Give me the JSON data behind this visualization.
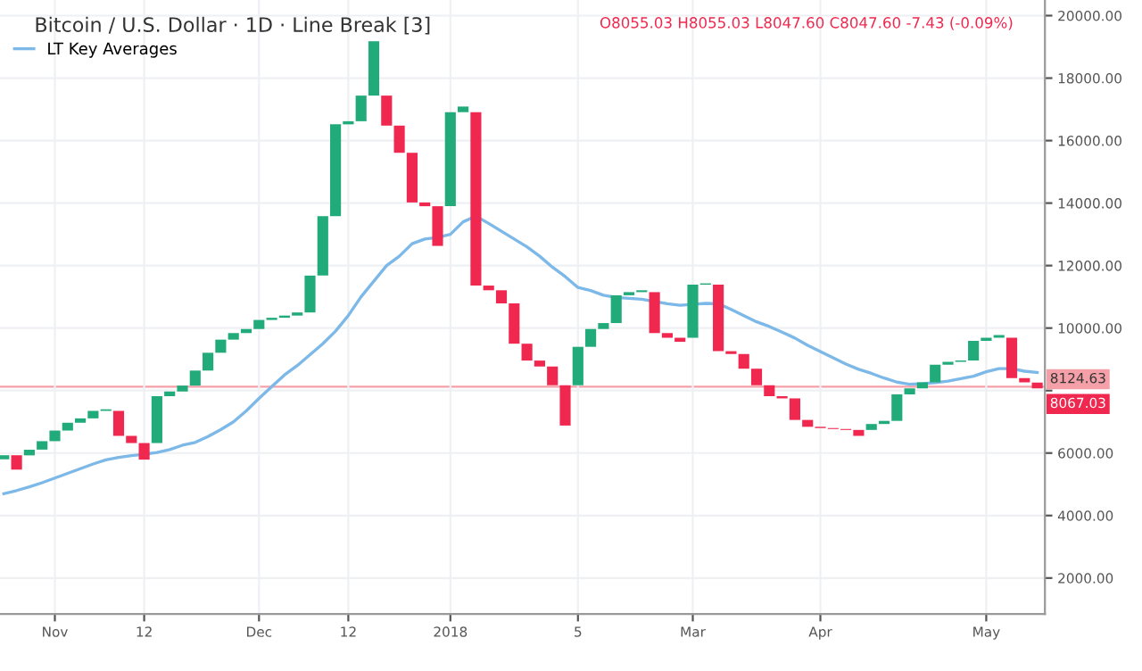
{
  "chart_data": {
    "type": "bar",
    "title": "Bitcoin / U.S. Dollar · 1D · Line Break [3]",
    "annotations": [
      "O8055.03 H8055.03 L8047.60 C8047.60 -7.43 (-0.09%)",
      "8067.03"
    ],
    "categories": [
      null,
      null,
      null,
      null,
      "Nov",
      null,
      null,
      null,
      null,
      null,
      null,
      "12",
      null,
      null,
      null,
      null,
      null,
      null,
      null,
      null,
      "Dec",
      null,
      null,
      null,
      null,
      null,
      null,
      "12",
      null,
      null,
      null,
      null,
      null,
      null,
      null,
      "2018",
      null,
      null,
      null,
      null,
      null,
      null,
      null,
      null,
      null,
      "5",
      null,
      null,
      null,
      null,
      null,
      null,
      null,
      null,
      "Mar",
      null,
      null,
      null,
      null,
      null,
      null,
      null,
      null,
      null,
      "Apr",
      null,
      null,
      null,
      null,
      null,
      null,
      null,
      null,
      null,
      null,
      null,
      null,
      "May",
      null,
      null,
      null,
      null
    ],
    "series": [
      {
        "type": "bar",
        "base": [
          5800,
          5470,
          5926,
          6110,
          6380,
          6720,
          6970,
          7110,
          7350,
          6550,
          6320,
          5790,
          6320,
          7820,
          7970,
          8160,
          8640,
          9210,
          9630,
          9840,
          9970,
          10260,
          10330,
          10400,
          10500,
          11680,
          13580,
          16520,
          16620,
          17440,
          16480,
          15610,
          14020,
          13900,
          12630,
          13900,
          16910,
          11360,
          11210,
          10790,
          9500,
          8960,
          8770,
          8170,
          6880,
          8170,
          9400,
          9970,
          10160,
          11050,
          11150,
          9840,
          9690,
          9560,
          9690,
          11390,
          9260,
          9170,
          8700,
          8170,
          7820,
          7750,
          7060,
          6840,
          6800,
          6770,
          6740,
          6550,
          6740,
          6930,
          7030,
          7880,
          8070,
          8260,
          8830,
          8920,
          8960,
          9590,
          9690,
          8400,
          8260,
          8067
        ],
        "values": [
          130,
          460,
          180,
          270,
          340,
          250,
          140,
          240,
          50,
          800,
          230,
          530,
          1500,
          150,
          190,
          480,
          570,
          420,
          210,
          130,
          290,
          70,
          70,
          100,
          1180,
          1900,
          2940,
          100,
          820,
          1740,
          960,
          870,
          1590,
          120,
          1270,
          3010,
          180,
          5550,
          150,
          420,
          1290,
          540,
          190,
          600,
          1290,
          1230,
          570,
          190,
          890,
          100,
          60,
          1310,
          150,
          130,
          1700,
          40,
          2130,
          90,
          470,
          530,
          350,
          70,
          690,
          220,
          40,
          30,
          30,
          190,
          190,
          100,
          850,
          190,
          190,
          570,
          90,
          40,
          630,
          100,
          90,
          1290,
          140,
          190
        ],
        "colors": [
          "#22ab7a",
          "#f0284f",
          "#22ab7a",
          "#22ab7a",
          "#22ab7a",
          "#22ab7a",
          "#22ab7a",
          "#22ab7a",
          "#22ab7a",
          "#f0284f",
          "#f0284f",
          "#f0284f",
          "#22ab7a",
          "#22ab7a",
          "#22ab7a",
          "#22ab7a",
          "#22ab7a",
          "#22ab7a",
          "#22ab7a",
          "#22ab7a",
          "#22ab7a",
          "#22ab7a",
          "#22ab7a",
          "#22ab7a",
          "#22ab7a",
          "#22ab7a",
          "#22ab7a",
          "#22ab7a",
          "#22ab7a",
          "#22ab7a",
          "#f0284f",
          "#f0284f",
          "#f0284f",
          "#f0284f",
          "#f0284f",
          "#22ab7a",
          "#22ab7a",
          "#f0284f",
          "#f0284f",
          "#f0284f",
          "#f0284f",
          "#f0284f",
          "#f0284f",
          "#f0284f",
          "#f0284f",
          "#22ab7a",
          "#22ab7a",
          "#22ab7a",
          "#22ab7a",
          "#22ab7a",
          "#22ab7a",
          "#f0284f",
          "#f0284f",
          "#f0284f",
          "#22ab7a",
          "#22ab7a",
          "#f0284f",
          "#f0284f",
          "#f0284f",
          "#f0284f",
          "#f0284f",
          "#f0284f",
          "#f0284f",
          "#f0284f",
          "#f0284f",
          "#f0284f",
          "#f0284f",
          "#f0284f",
          "#22ab7a",
          "#22ab7a",
          "#22ab7a",
          "#22ab7a",
          "#22ab7a",
          "#22ab7a",
          "#22ab7a",
          "#22ab7a",
          "#22ab7a",
          "#22ab7a",
          "#22ab7a",
          "#f0284f",
          "#f0284f",
          "#f0284f"
        ]
      },
      {
        "type": "line",
        "name": "LT Key Averages",
        "color": "#7cb8e8",
        "values": [
          4700,
          4800,
          4920,
          5050,
          5200,
          5350,
          5500,
          5650,
          5780,
          5860,
          5920,
          5960,
          6020,
          6110,
          6250,
          6340,
          6530,
          6750,
          7000,
          7350,
          7750,
          8130,
          8500,
          8800,
          9150,
          9500,
          9900,
          10400,
          11000,
          11500,
          12000,
          12300,
          12700,
          12850,
          12900,
          13000,
          13400,
          13580,
          13350,
          13100,
          12850,
          12600,
          12300,
          11950,
          11650,
          11300,
          11200,
          11050,
          10980,
          10950,
          10920,
          10850,
          10780,
          10730,
          10760,
          10790,
          10780,
          10600,
          10400,
          10200,
          10050,
          9870,
          9680,
          9450,
          9250,
          9050,
          8850,
          8680,
          8550,
          8400,
          8270,
          8200,
          8220,
          8250,
          8300,
          8380,
          8460,
          8600,
          8700,
          8700,
          8620,
          8580
        ]
      }
    ],
    "ref_lines": [
      {
        "axis": "y",
        "value": 8124.63,
        "label": "8124.63",
        "color": "#f5a0a8",
        "line_style": "solid"
      }
    ],
    "ylim": [
      850,
      20500
    ],
    "yticks": [
      {
        "value": 2000,
        "label": "2000.00"
      },
      {
        "value": 4000,
        "label": "4000.00"
      },
      {
        "value": 6000,
        "label": "6000.00"
      },
      {
        "value": 8000,
        "label": null
      },
      {
        "value": 10000,
        "label": "10000.00"
      },
      {
        "value": 12000,
        "label": "12000.00"
      },
      {
        "value": 14000,
        "label": "14000.00"
      },
      {
        "value": 16000,
        "label": "16000.00"
      },
      {
        "value": 18000,
        "label": "18000.00"
      },
      {
        "value": 20000,
        "label": "20000.00"
      }
    ],
    "grid": true,
    "legend": "top left"
  }
}
